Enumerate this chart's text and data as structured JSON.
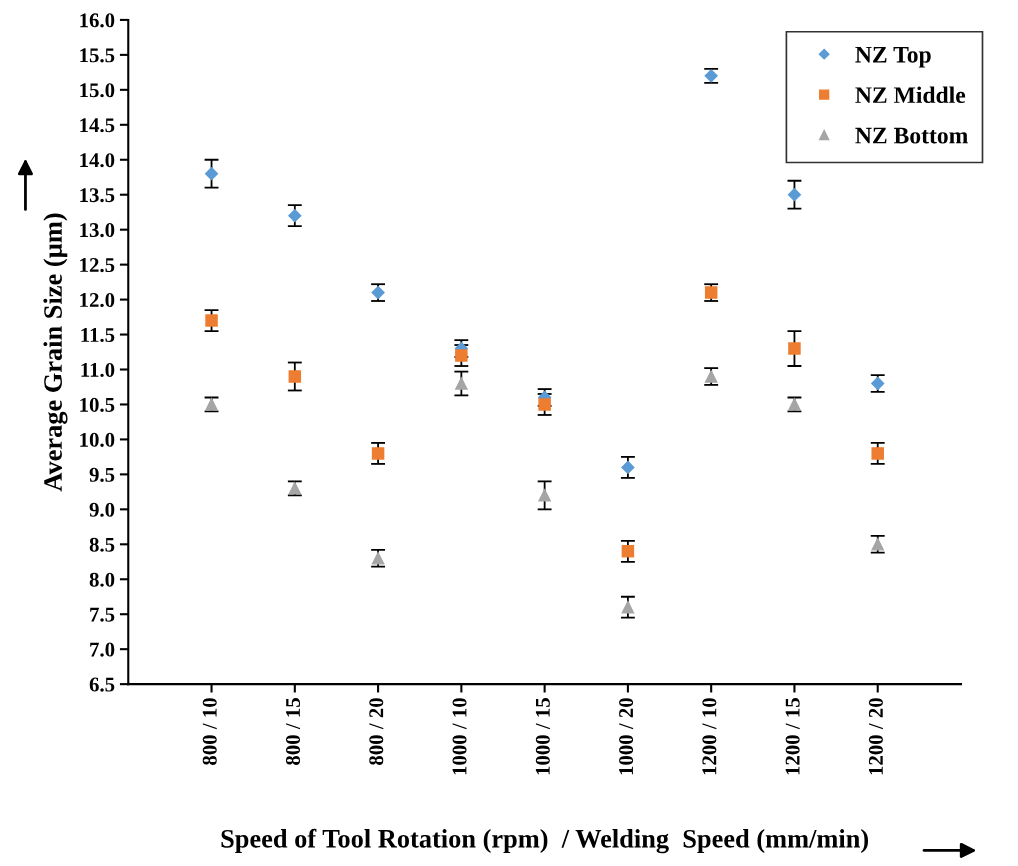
{
  "chart_data": {
    "type": "scatter",
    "categories": [
      "800 / 10",
      "800 / 15",
      "800 / 20",
      "1000 / 10",
      "1000 / 15",
      "1000 / 20",
      "1200 / 10",
      "1200 / 15",
      "1200 / 20"
    ],
    "xlabel": "Speed of Tool Rotation (rpm)  / Welding  Speed (mm/min)",
    "ylabel": "Average Grain Size (µm)",
    "ylim": [
      6.5,
      16.0
    ],
    "yticks": [
      {
        "value": 6.5,
        "label": "6.5"
      },
      {
        "value": 7.0,
        "label": "7.0"
      },
      {
        "value": 7.5,
        "label": "7.5"
      },
      {
        "value": 8.0,
        "label": "8.0"
      },
      {
        "value": 8.5,
        "label": "8.5"
      },
      {
        "value": 9.0,
        "label": "9.0"
      },
      {
        "value": 9.5,
        "label": "9.5"
      },
      {
        "value": 10.0,
        "label": "10.0"
      },
      {
        "value": 10.5,
        "label": "10.5"
      },
      {
        "value": 11.0,
        "label": "11.0"
      },
      {
        "value": 11.5,
        "label": "11.5"
      },
      {
        "value": 12.0,
        "label": "12.0"
      },
      {
        "value": 12.5,
        "label": "12.5"
      },
      {
        "value": 13.0,
        "label": "13.0"
      },
      {
        "value": 13.5,
        "label": "13.5"
      },
      {
        "value": 14.0,
        "label": "14.0"
      },
      {
        "value": 14.5,
        "label": "14.5"
      },
      {
        "value": 15.0,
        "label": "15.0"
      },
      {
        "value": 15.5,
        "label": "15.5"
      },
      {
        "value": 16.0,
        "label": "16.0"
      }
    ],
    "grid": false,
    "legend": "top right",
    "series": [
      {
        "name": "NZ Top",
        "color": "#5b9bd5",
        "marker": "diamond",
        "values": [
          13.8,
          13.2,
          12.1,
          11.3,
          10.6,
          9.6,
          15.2,
          13.5,
          10.8
        ],
        "errors": [
          0.2,
          0.15,
          0.12,
          0.12,
          0.12,
          0.15,
          0.1,
          0.2,
          0.12
        ]
      },
      {
        "name": "NZ Middle",
        "color": "#ed7d31",
        "marker": "square",
        "values": [
          11.7,
          10.9,
          9.8,
          11.2,
          10.5,
          8.4,
          12.1,
          11.3,
          9.8
        ],
        "errors": [
          0.15,
          0.2,
          0.15,
          0.15,
          0.15,
          0.15,
          0.12,
          0.25,
          0.15
        ]
      },
      {
        "name": "NZ Bottom",
        "color": "#a5a5a5",
        "marker": "triangle",
        "values": [
          10.5,
          9.3,
          8.3,
          10.8,
          9.2,
          7.6,
          10.9,
          10.5,
          8.5
        ],
        "errors": [
          0.1,
          0.1,
          0.12,
          0.17,
          0.2,
          0.15,
          0.12,
          0.1,
          0.12
        ]
      }
    ]
  }
}
